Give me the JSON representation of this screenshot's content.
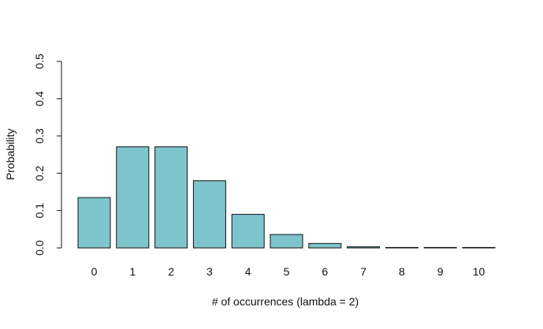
{
  "chart_data": {
    "type": "bar",
    "title": "",
    "xlabel": "# of occurrences (lambda = 2)",
    "ylabel": "Probability",
    "categories": [
      "0",
      "1",
      "2",
      "3",
      "4",
      "5",
      "6",
      "7",
      "8",
      "9",
      "10"
    ],
    "values": [
      0.135,
      0.271,
      0.271,
      0.18,
      0.09,
      0.036,
      0.012,
      0.003,
      0.001,
      0.0002,
      4e-05
    ],
    "ylim": [
      0,
      0.5
    ],
    "yticks": [
      "0.0",
      "0.1",
      "0.2",
      "0.3",
      "0.4",
      "0.5"
    ],
    "grid": false,
    "legend": "none",
    "bar_color": "#7ec4cc"
  }
}
